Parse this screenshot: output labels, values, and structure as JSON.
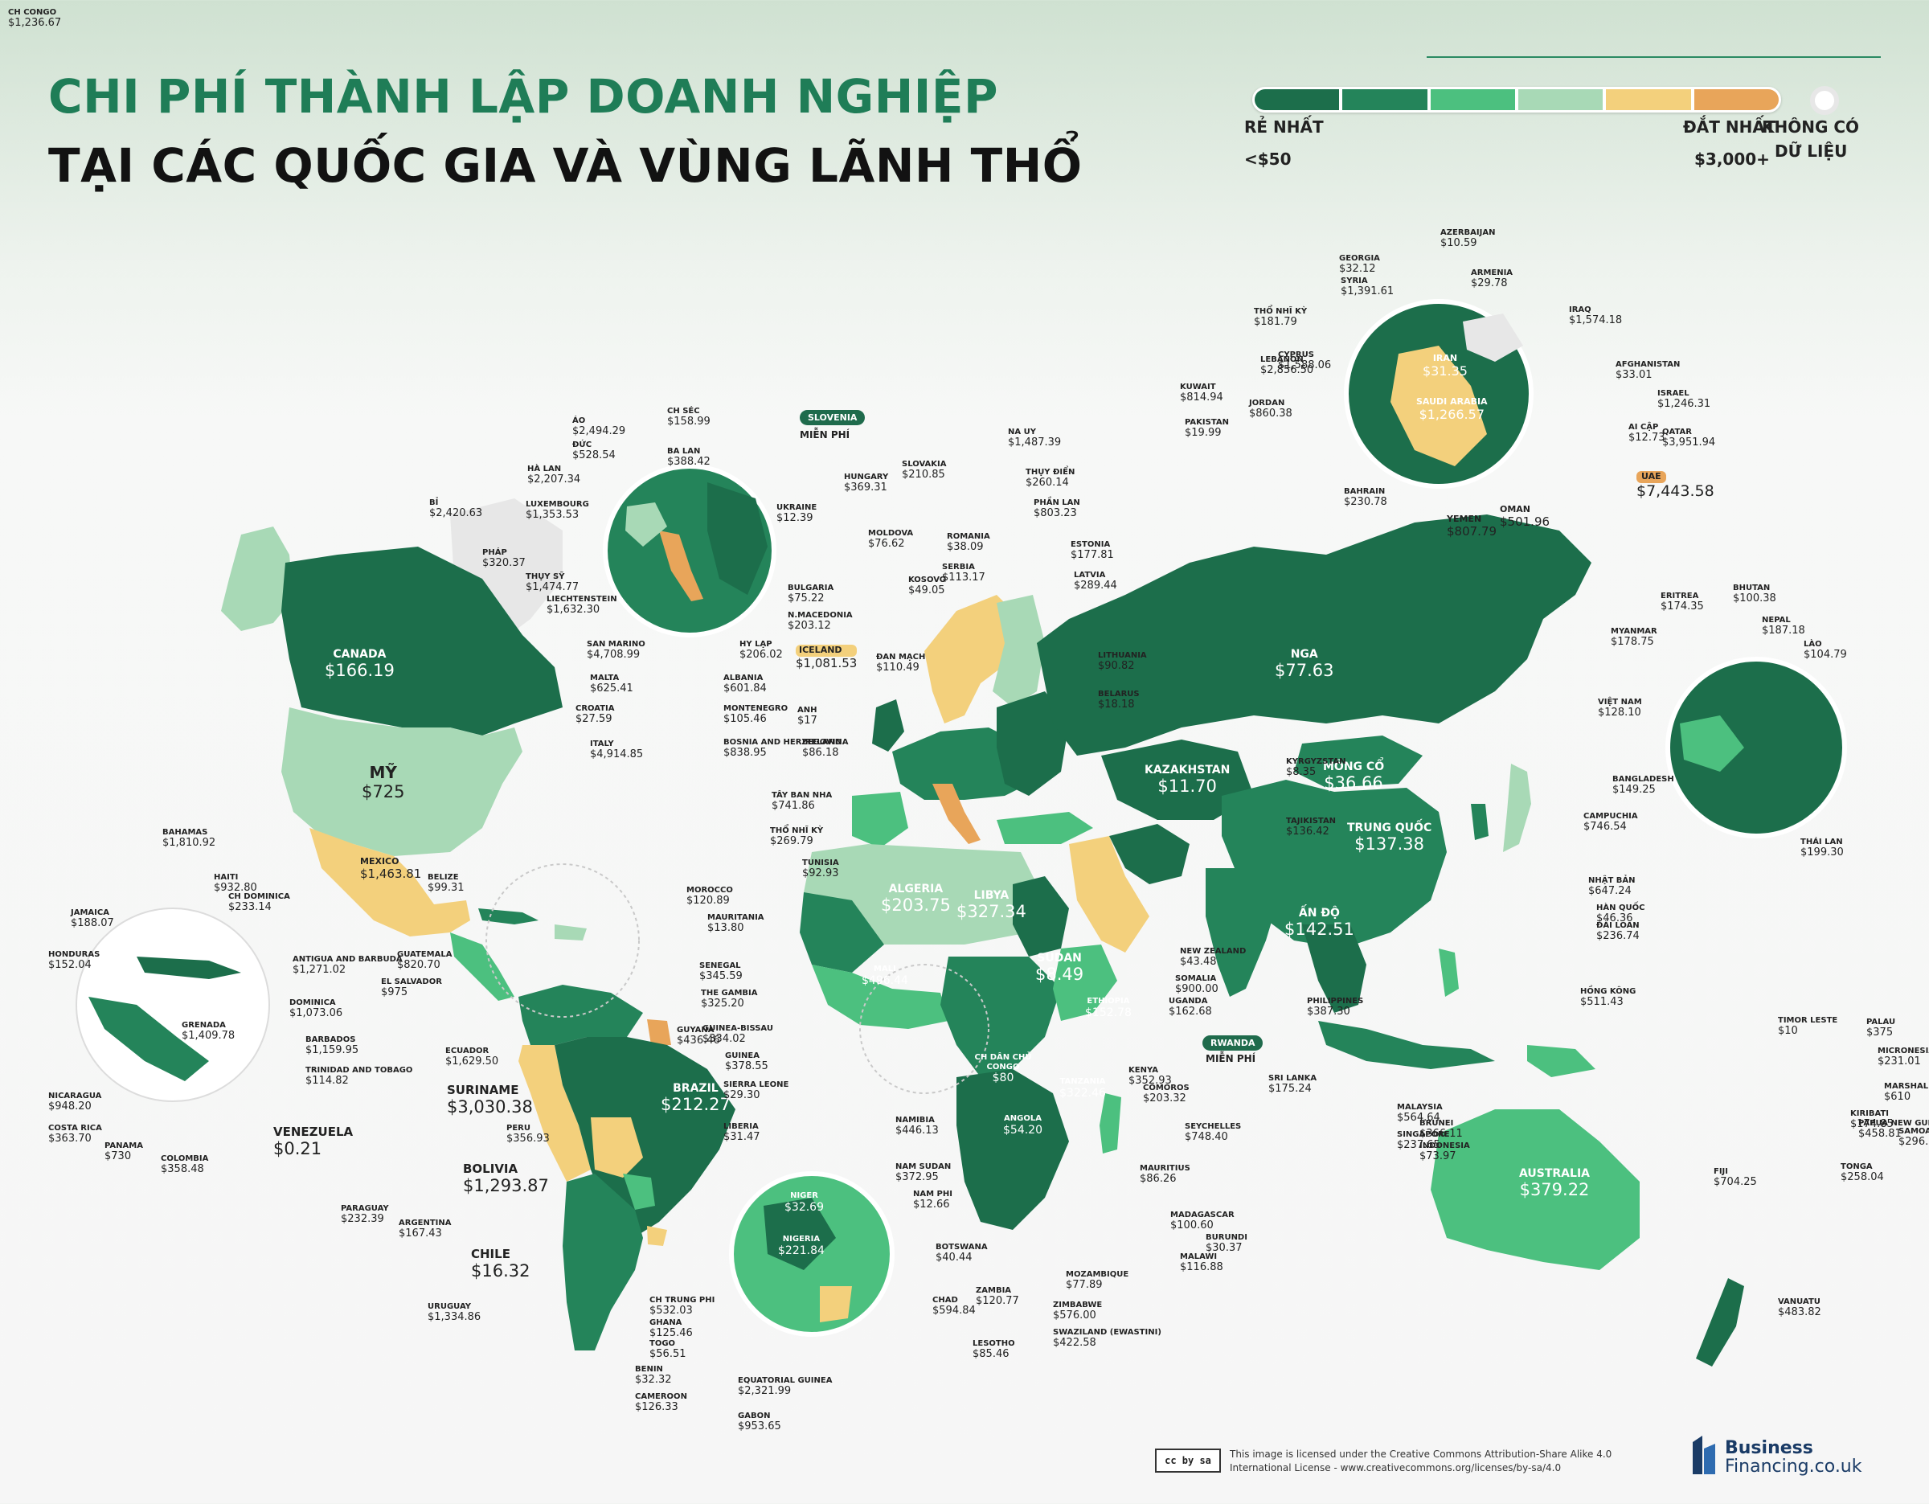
{
  "title": {
    "line1": "CHI PHÍ THÀNH LẬP DOANH NGHIỆP",
    "line2": "TẠI CÁC QUỐC GIA VÀ VÙNG LÃNH THỔ"
  },
  "legend": {
    "cheapest_label": "RẺ NHẤT",
    "cheapest_value": "<$50",
    "expensive_label": "ĐẮT NHẤT",
    "expensive_value": "$3,000+",
    "nodata_line1": "KHÔNG CÓ",
    "nodata_line2": "DỮ LIỆU",
    "colors": [
      "#1c6e4b",
      "#24845a",
      "#4cc07f",
      "#a8d9b6",
      "#f3d07c",
      "#e8a55a"
    ],
    "nodata_color": "#e7e7e7"
  },
  "big_labels": [
    {
      "name": "CANADA",
      "value": "$166.19"
    },
    {
      "name": "NGA",
      "value": "$77.63"
    },
    {
      "name": "TRUNG QUỐC",
      "value": "$137.38"
    },
    {
      "name": "BRAZIL",
      "value": "$212.27"
    },
    {
      "name": "AUSTRALIA",
      "value": "$379.22"
    },
    {
      "name": "MÔNG CỔ",
      "value": "$36.66"
    },
    {
      "name": "KAZAKHSTAN",
      "value": "$11.70"
    },
    {
      "name": "ẤN ĐỘ",
      "value": "$142.51"
    },
    {
      "name": "SUDAN",
      "value": "$8.49"
    },
    {
      "name": "ALGERIA",
      "value": "$203.75"
    },
    {
      "name": "LIBYA",
      "value": "$327.34"
    },
    {
      "name": "MALI",
      "value": "$496.44"
    },
    {
      "name": "ANGOLA",
      "value": "$54.20"
    },
    {
      "name": "ETHIOPIA",
      "value": "$152.78"
    },
    {
      "name": "TANZANIA",
      "value": "$322.46"
    },
    {
      "name": "CH DÂN CHỦ CONGO",
      "value": "$80"
    },
    {
      "name": "NIGER",
      "value": "$32.69"
    },
    {
      "name": "NIGERIA",
      "value": "$221.84"
    },
    {
      "name": "IRAN",
      "value": "$31.35"
    },
    {
      "name": "SAUDI ARABIA",
      "value": "$1,266.57"
    },
    {
      "name": "KYRGYZSTAN",
      "value": "$8.35"
    },
    {
      "name": "TAJIKISTAN",
      "value": "$136.42"
    }
  ],
  "mid_labels": [
    {
      "name": "MỸ",
      "value": "$725"
    },
    {
      "name": "MEXICO",
      "value": "$1,463.81"
    },
    {
      "name": "SURINAME",
      "value": "$3,030.38"
    },
    {
      "name": "VENEZUELA",
      "value": "$0.21"
    },
    {
      "name": "BOLIVIA",
      "value": "$1,293.87"
    },
    {
      "name": "CHILE",
      "value": "$16.32"
    },
    {
      "name": "ICELAND",
      "value": "$1,081.53"
    },
    {
      "name": "UAE",
      "value": "$7,443.58"
    },
    {
      "name": "YEMEN",
      "value": "$807.79"
    },
    {
      "name": "OMAN",
      "value": "$501.96"
    }
  ],
  "small_labels": [
    {
      "name": "ÁO",
      "value": "$2,494.29"
    },
    {
      "name": "ĐỨC",
      "value": "$528.54"
    },
    {
      "name": "HÀ LAN",
      "value": "$2,207.34"
    },
    {
      "name": "BỈ",
      "value": "$2,420.63"
    },
    {
      "name": "LUXEMBOURG",
      "value": "$1,353.53"
    },
    {
      "name": "PHÁP",
      "value": "$320.37"
    },
    {
      "name": "THỤY SỸ",
      "value": "$1,474.77"
    },
    {
      "name": "LIECHTENSTEIN",
      "value": "$1,632.30"
    },
    {
      "name": "SAN MARINO",
      "value": "$4,708.99"
    },
    {
      "name": "MALTA",
      "value": "$625.41"
    },
    {
      "name": "CROATIA",
      "value": "$27.59"
    },
    {
      "name": "ITALY",
      "value": "$4,914.85"
    },
    {
      "name": "CH SÉC",
      "value": "$158.99"
    },
    {
      "name": "BA LAN",
      "value": "$388.42"
    },
    {
      "name": "SLOVAKIA",
      "value": "$210.85"
    },
    {
      "name": "HUNGARY",
      "value": "$369.31"
    },
    {
      "name": "UKRAINE",
      "value": "$12.39"
    },
    {
      "name": "MOLDOVA",
      "value": "$76.62"
    },
    {
      "name": "ROMANIA",
      "value": "$38.09"
    },
    {
      "name": "SERBIA",
      "value": "$113.17"
    },
    {
      "name": "KOSOVO",
      "value": "$49.05"
    },
    {
      "name": "BULGARIA",
      "value": "$75.22"
    },
    {
      "name": "N.MACEDONIA",
      "value": "$203.12"
    },
    {
      "name": "HY LẠP",
      "value": "$206.02"
    },
    {
      "name": "ALBANIA",
      "value": "$601.84"
    },
    {
      "name": "MONTENEGRO",
      "value": "$105.46"
    },
    {
      "name": "BOSNIA AND HERZEGOVINA",
      "value": "$838.95"
    },
    {
      "name": "NA UY",
      "value": "$1,487.39"
    },
    {
      "name": "THỤY ĐIỂN",
      "value": "$260.14"
    },
    {
      "name": "PHẦN LAN",
      "value": "$803.23"
    },
    {
      "name": "ESTONIA",
      "value": "$177.81"
    },
    {
      "name": "LATVIA",
      "value": "$289.44"
    },
    {
      "name": "LITHUANIA",
      "value": "$90.82"
    },
    {
      "name": "BELARUS",
      "value": "$18.18"
    },
    {
      "name": "ĐAN MẠCH",
      "value": "$110.49"
    },
    {
      "name": "ANH",
      "value": "$17"
    },
    {
      "name": "IRELAND",
      "value": "$86.18"
    },
    {
      "name": "TÂY BAN NHA",
      "value": "$741.86"
    },
    {
      "name": "THỔ NHĨ KỲ",
      "value": "$269.79"
    },
    {
      "name": "TUNISIA",
      "value": "$92.93"
    },
    {
      "name": "MOROCCO",
      "value": "$120.89"
    },
    {
      "name": "MAURITANIA",
      "value": "$13.80"
    },
    {
      "name": "SENEGAL",
      "value": "$345.59"
    },
    {
      "name": "THE GAMBIA",
      "value": "$325.20"
    },
    {
      "name": "GUINEA-BISSAU",
      "value": "$334.02"
    },
    {
      "name": "GUINEA",
      "value": "$378.55"
    },
    {
      "name": "SIERRA LEONE",
      "value": "$29.30"
    },
    {
      "name": "LIBERIA",
      "value": "$31.47"
    },
    {
      "name": "GUYANA",
      "value": "$436.46"
    },
    {
      "name": "ECUADOR",
      "value": "$1,629.50"
    },
    {
      "name": "PERU",
      "value": "$356.93"
    },
    {
      "name": "PARAGUAY",
      "value": "$232.39"
    },
    {
      "name": "ARGENTINA",
      "value": "$167.43"
    },
    {
      "name": "URUGUAY",
      "value": "$1,334.86"
    },
    {
      "name": "BAHAMAS",
      "value": "$1,810.92"
    },
    {
      "name": "HAITI",
      "value": "$932.80"
    },
    {
      "name": "CH DOMINICA",
      "value": "$233.14"
    },
    {
      "name": "JAMAICA",
      "value": "$188.07"
    },
    {
      "name": "HONDURAS",
      "value": "$152.04"
    },
    {
      "name": "ANTIGUA AND BARBUDA",
      "value": "$1,271.02"
    },
    {
      "name": "DOMINICA",
      "value": "$1,073.06"
    },
    {
      "name": "GRENADA",
      "value": "$1,409.78"
    },
    {
      "name": "BARBADOS",
      "value": "$1,159.95"
    },
    {
      "name": "TRINIDAD AND TOBAGO",
      "value": "$114.82"
    },
    {
      "name": "NICARAGUA",
      "value": "$948.20"
    },
    {
      "name": "COSTA RICA",
      "value": "$363.70"
    },
    {
      "name": "PANAMA",
      "value": "$730"
    },
    {
      "name": "COLOMBIA",
      "value": "$358.48"
    },
    {
      "name": "BELIZE",
      "value": "$99.31"
    },
    {
      "name": "GUATEMALA",
      "value": "$820.70"
    },
    {
      "name": "EL SALVADOR",
      "value": "$975"
    },
    {
      "name": "AZERBAIJAN",
      "value": "$10.59"
    },
    {
      "name": "GEORGIA",
      "value": "$32.12"
    },
    {
      "name": "ARMENIA",
      "value": "$29.78"
    },
    {
      "name": "SYRIA",
      "value": "$1,391.61"
    },
    {
      "name": "IRAQ",
      "value": "$1,574.18"
    },
    {
      "name": "THỔ NHĨ KỲ",
      "value": "$181.79"
    },
    {
      "name": "LEBANON",
      "value": "$2,856.50"
    },
    {
      "name": "CYPRUS",
      "value": "$1,588.06"
    },
    {
      "name": "AFGHANISTAN",
      "value": "$33.01"
    },
    {
      "name": "KUWAIT",
      "value": "$814.94"
    },
    {
      "name": "JORDAN",
      "value": "$860.38"
    },
    {
      "name": "ISRAEL",
      "value": "$1,246.31"
    },
    {
      "name": "PAKISTAN",
      "value": "$19.99"
    },
    {
      "name": "AI CẬP",
      "value": "$12.73"
    },
    {
      "name": "QATAR",
      "value": "$3,951.94"
    },
    {
      "name": "BAHRAIN",
      "value": "$230.78"
    },
    {
      "name": "ERITREA",
      "value": "$174.35"
    },
    {
      "name": "BHUTAN",
      "value": "$100.38"
    },
    {
      "name": "MYANMAR",
      "value": "$178.75"
    },
    {
      "name": "NEPAL",
      "value": "$187.18"
    },
    {
      "name": "LÀO",
      "value": "$104.79"
    },
    {
      "name": "VIỆT NAM",
      "value": "$128.10"
    },
    {
      "name": "BANGLADESH",
      "value": "$149.25"
    },
    {
      "name": "THÁI LAN",
      "value": "$199.30"
    },
    {
      "name": "CAMPUCHIA",
      "value": "$746.54"
    },
    {
      "name": "NHẬT BẢN",
      "value": "$647.24"
    },
    {
      "name": "HÀN QUỐC",
      "value": "$46.36"
    },
    {
      "name": "ĐÀI LOAN",
      "value": "$236.74"
    },
    {
      "name": "HỒNG KÔNG",
      "value": "$511.43"
    },
    {
      "name": "PHILIPPINES",
      "value": "$387.30"
    },
    {
      "name": "SRI LANKA",
      "value": "$175.24"
    },
    {
      "name": "MALAYSIA",
      "value": "$564.64"
    },
    {
      "name": "SINGAPORE",
      "value": "$237.65"
    },
    {
      "name": "BRUNEI",
      "value": "$366.11"
    },
    {
      "name": "INDONESIA",
      "value": "$73.97"
    },
    {
      "name": "TIMOR LESTE",
      "value": "$10"
    },
    {
      "name": "PALAU",
      "value": "$375"
    },
    {
      "name": "MICRONESIA",
      "value": "$231.01"
    },
    {
      "name": "MARSHALL ISLANDS",
      "value": "$610"
    },
    {
      "name": "KIRIBATI",
      "value": "$174.85"
    },
    {
      "name": "PAPUA NEW GUINEA",
      "value": "$458.81"
    },
    {
      "name": "SAMOA",
      "value": "$296.24"
    },
    {
      "name": "TONGA",
      "value": "$258.04"
    },
    {
      "name": "FIJI",
      "value": "$704.25"
    },
    {
      "name": "VANUATU",
      "value": "$483.82"
    },
    {
      "name": "NEW ZEALAND",
      "value": "$43.48"
    },
    {
      "name": "SOMALIA",
      "value": "$900.00"
    },
    {
      "name": "UGANDA",
      "value": "$162.68"
    },
    {
      "name": "KENYA",
      "value": "$352.93"
    },
    {
      "name": "COMOROS",
      "value": "$203.32"
    },
    {
      "name": "SEYCHELLES",
      "value": "$748.40"
    },
    {
      "name": "MAURITIUS",
      "value": "$86.26"
    },
    {
      "name": "MADAGASCAR",
      "value": "$100.60"
    },
    {
      "name": "BURUNDI",
      "value": "$30.37"
    },
    {
      "name": "MALAWI",
      "value": "$116.88"
    },
    {
      "name": "MOZAMBIQUE",
      "value": "$77.89"
    },
    {
      "name": "ZIMBABWE",
      "value": "$576.00"
    },
    {
      "name": "SWAZILAND (EWASTINI)",
      "value": "$422.58"
    },
    {
      "name": "LESOTHO",
      "value": "$85.46"
    },
    {
      "name": "ZAMBIA",
      "value": "$120.77"
    },
    {
      "name": "BOTSWANA",
      "value": "$40.44"
    },
    {
      "name": "NAM PHI",
      "value": "$12.66"
    },
    {
      "name": "NAMIBIA",
      "value": "$446.13"
    },
    {
      "name": "NAM SUDAN",
      "value": "$372.95"
    },
    {
      "name": "CHAD",
      "value": "$594.84"
    },
    {
      "name": "CH TRUNG PHI",
      "value": "$532.03"
    },
    {
      "name": "GHANA",
      "value": "$125.46"
    },
    {
      "name": "TOGO",
      "value": "$56.51"
    },
    {
      "name": "BENIN",
      "value": "$32.32"
    },
    {
      "name": "CAMEROON",
      "value": "$126.33"
    },
    {
      "name": "EQUATORIAL GUINEA",
      "value": "$2,321.99"
    },
    {
      "name": "GABON",
      "value": "$953.65"
    },
    {
      "name": "CH CONGO",
      "value": "$1,236.67"
    }
  ],
  "badges": [
    {
      "name": "SLOVENIA",
      "note": "MIỄN PHÍ"
    },
    {
      "name": "RWANDA",
      "note": "MIỄN PHÍ"
    }
  ],
  "footer": {
    "license_line1": "This image is licensed under the Creative Commons Attribution-Share Alike 4.0",
    "license_line2": "International License - www.creativecommons.org/licenses/by-sa/4.0",
    "cc_badge": "cc by sa",
    "brand_line1": "Business",
    "brand_line2": "Financing.co.uk"
  }
}
